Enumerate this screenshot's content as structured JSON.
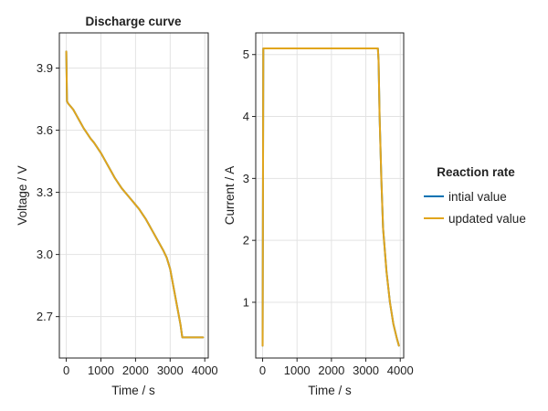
{
  "chart_data": [
    {
      "type": "line",
      "title": "Discharge curve",
      "xlabel": "Time / s",
      "ylabel": "Voltage / V",
      "xlim": [
        -200,
        4100
      ],
      "ylim": [
        2.5,
        4.07
      ],
      "xticks": [
        0,
        1000,
        2000,
        3000,
        4000
      ],
      "xtick_labels": [
        "0",
        "1000",
        "2000",
        "3000",
        "4000"
      ],
      "yticks": [
        2.7,
        3.0,
        3.3,
        3.6,
        3.9
      ],
      "ytick_labels": [
        "2.7",
        "3.0",
        "3.3",
        "3.6",
        "3.9"
      ],
      "grid": true,
      "series": [
        {
          "name": "intial value",
          "color": "#0072b2",
          "x": [
            0,
            20,
            50,
            100,
            200,
            300,
            400,
            500,
            600,
            700,
            800,
            900,
            1000,
            1100,
            1200,
            1300,
            1400,
            1500,
            1600,
            1700,
            1800,
            1900,
            2000,
            2100,
            2200,
            2300,
            2400,
            2500,
            2600,
            2700,
            2800,
            2900,
            3000,
            3100,
            3200,
            3300,
            3350,
            3400,
            3500,
            3600,
            3700,
            3800,
            3900,
            3950
          ],
          "y": [
            3.98,
            3.74,
            3.73,
            3.72,
            3.7,
            3.67,
            3.64,
            3.61,
            3.585,
            3.56,
            3.54,
            3.515,
            3.49,
            3.46,
            3.43,
            3.4,
            3.37,
            3.345,
            3.32,
            3.3,
            3.28,
            3.26,
            3.24,
            3.22,
            3.195,
            3.17,
            3.14,
            3.11,
            3.08,
            3.05,
            3.02,
            2.985,
            2.93,
            2.84,
            2.75,
            2.66,
            2.6,
            2.6,
            2.6,
            2.6,
            2.6,
            2.6,
            2.6,
            2.6
          ]
        },
        {
          "name": "updated value",
          "color": "#e1a51c",
          "x": [
            0,
            20,
            50,
            100,
            200,
            300,
            400,
            500,
            600,
            700,
            800,
            900,
            1000,
            1100,
            1200,
            1300,
            1400,
            1500,
            1600,
            1700,
            1800,
            1900,
            2000,
            2100,
            2200,
            2300,
            2400,
            2500,
            2600,
            2700,
            2800,
            2900,
            3000,
            3100,
            3200,
            3300,
            3350,
            3400,
            3500,
            3600,
            3700,
            3800,
            3900,
            3950
          ],
          "y": [
            3.98,
            3.74,
            3.73,
            3.72,
            3.7,
            3.67,
            3.64,
            3.61,
            3.585,
            3.56,
            3.54,
            3.515,
            3.49,
            3.46,
            3.43,
            3.4,
            3.37,
            3.345,
            3.32,
            3.3,
            3.28,
            3.26,
            3.24,
            3.22,
            3.195,
            3.17,
            3.14,
            3.11,
            3.08,
            3.05,
            3.02,
            2.985,
            2.93,
            2.84,
            2.75,
            2.66,
            2.6,
            2.6,
            2.6,
            2.6,
            2.6,
            2.6,
            2.6,
            2.6
          ]
        }
      ]
    },
    {
      "type": "line",
      "title": "",
      "xlabel": "Time / s",
      "ylabel": "Current / A",
      "xlim": [
        -200,
        4100
      ],
      "ylim": [
        0.1,
        5.35
      ],
      "xticks": [
        0,
        1000,
        2000,
        3000,
        4000
      ],
      "xtick_labels": [
        "0",
        "1000",
        "2000",
        "3000",
        "4000"
      ],
      "yticks": [
        1,
        2,
        3,
        4,
        5
      ],
      "ytick_labels": [
        "1",
        "2",
        "3",
        "4",
        "5"
      ],
      "grid": true,
      "series": [
        {
          "name": "intial value",
          "color": "#0072b2",
          "x": [
            0,
            20,
            100,
            500,
            1000,
            2000,
            3000,
            3300,
            3350,
            3370,
            3400,
            3450,
            3500,
            3600,
            3700,
            3800,
            3900,
            3960
          ],
          "y": [
            0.3,
            5.1,
            5.1,
            5.1,
            5.1,
            5.1,
            5.1,
            5.1,
            5.1,
            4.9,
            4.0,
            3.0,
            2.2,
            1.5,
            1.0,
            0.65,
            0.42,
            0.3
          ]
        },
        {
          "name": "updated value",
          "color": "#e1a51c",
          "x": [
            0,
            20,
            100,
            500,
            1000,
            2000,
            3000,
            3300,
            3350,
            3370,
            3400,
            3450,
            3500,
            3600,
            3700,
            3800,
            3900,
            3960
          ],
          "y": [
            0.3,
            5.1,
            5.1,
            5.1,
            5.1,
            5.1,
            5.1,
            5.1,
            5.1,
            4.9,
            4.0,
            3.0,
            2.2,
            1.5,
            1.0,
            0.65,
            0.42,
            0.3
          ]
        }
      ]
    }
  ],
  "legend": {
    "title": "Reaction rate",
    "placement": "right",
    "entries": [
      {
        "label": "intial value",
        "color": "#0072b2"
      },
      {
        "label": "updated value",
        "color": "#e1a51c"
      }
    ]
  }
}
